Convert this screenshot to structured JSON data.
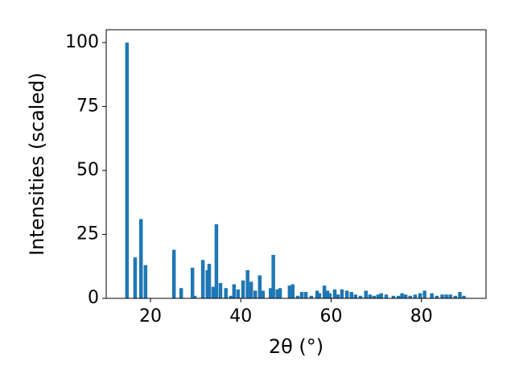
{
  "chart_data": {
    "type": "bar",
    "xlabel": "2θ (°)",
    "ylabel": "Intensities (scaled)",
    "color": "#1f77b4",
    "x": [
      14.8,
      16.6,
      17.9,
      18.9,
      25.2,
      26.8,
      29.3,
      29.8,
      31.6,
      32.6,
      33.0,
      33.9,
      34.6,
      35.5,
      36.7,
      37.8,
      38.5,
      39.4,
      40.5,
      41.5,
      42.3,
      43.2,
      44.2,
      44.9,
      46.6,
      47.2,
      48.1,
      48.7,
      50.8,
      51.5,
      52.6,
      53.5,
      54.4,
      55.6,
      56.9,
      57.4,
      58.5,
      59.2,
      59.7,
      60.8,
      61.5,
      62.4,
      63.5,
      64.5,
      65.4,
      66.5,
      67.7,
      68.6,
      69.5,
      70.4,
      71.1,
      72.2,
      73.8,
      74.9,
      75.7,
      76.5,
      77.5,
      78.6,
      79.7,
      80.7,
      82.3,
      83.4,
      84.6,
      85.5,
      86.4,
      87.5,
      88.5,
      89.4
    ],
    "values": [
      100,
      16,
      31,
      13,
      19,
      4,
      12,
      1,
      15,
      11,
      13.5,
      4.5,
      29,
      6,
      4,
      1,
      5.5,
      3.5,
      7,
      11,
      6.5,
      3,
      9,
      3,
      4,
      17,
      3.5,
      4,
      5,
      5.5,
      1,
      2.5,
      2.5,
      1,
      3,
      2,
      5,
      3,
      2,
      3.5,
      1.5,
      3.5,
      3,
      2.5,
      1.5,
      1,
      3,
      1.5,
      1,
      1.5,
      2,
      1.5,
      1,
      1,
      2,
      1.5,
      1,
      1.5,
      2,
      3,
      2,
      1,
      1.5,
      1.5,
      1.5,
      1,
      2.5,
      1
    ],
    "xlim": [
      10.2,
      94.3
    ],
    "ylim": [
      0,
      105
    ],
    "xticks": [
      20,
      40,
      60,
      80
    ],
    "yticks": [
      0,
      25,
      50,
      75,
      100
    ]
  }
}
